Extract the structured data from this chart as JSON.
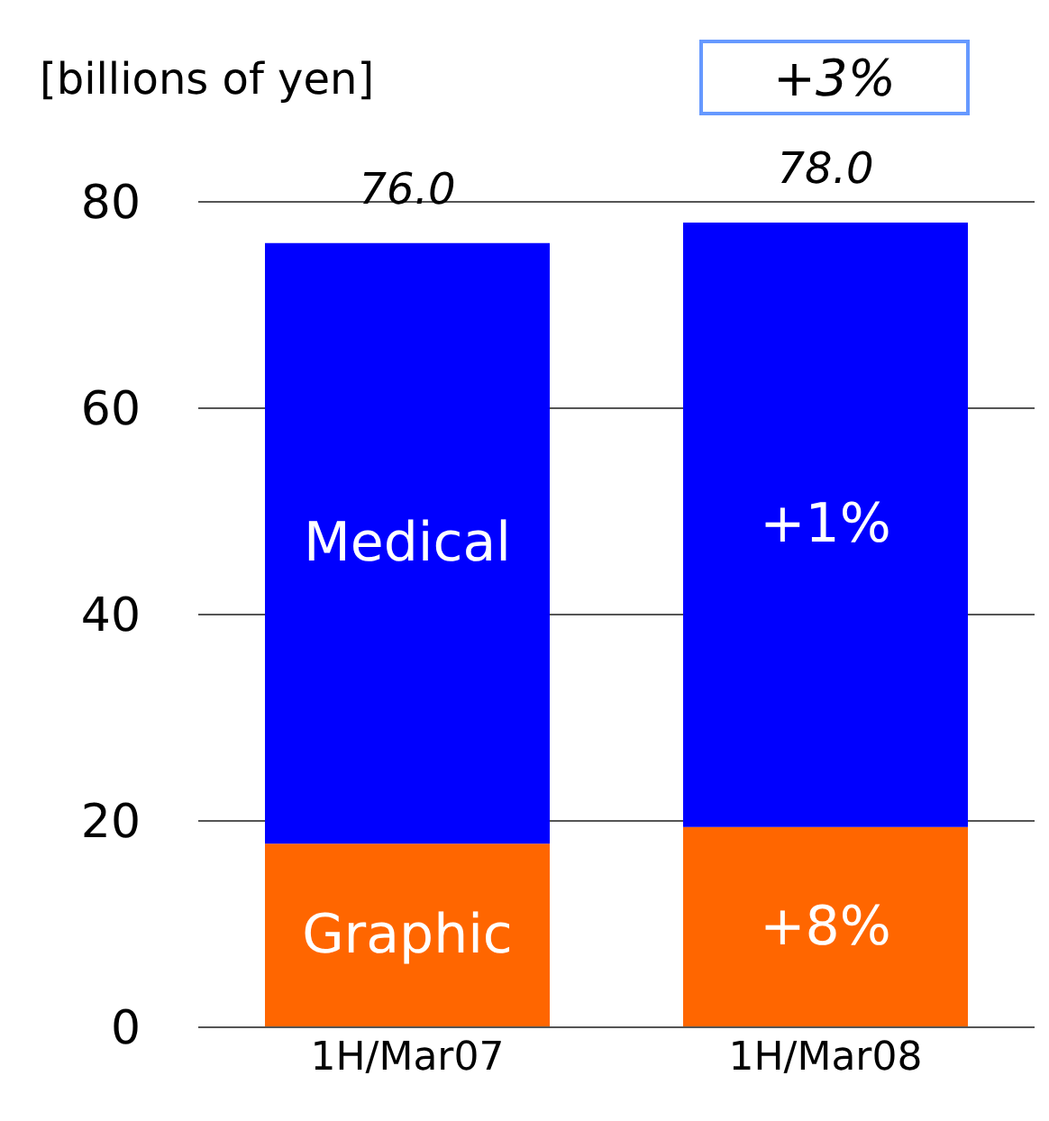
{
  "chart_data": {
    "type": "bar",
    "stacked": true,
    "ylabel": "[billions of yen]",
    "categories": [
      "1H/Mar07",
      "1H/Mar08"
    ],
    "series": [
      {
        "name": "Graphic",
        "color": "#ff6600",
        "values": [
          17.8,
          19.4
        ]
      },
      {
        "name": "Medical",
        "color": "#0000ff",
        "values": [
          58.2,
          58.6
        ]
      }
    ],
    "totals": [
      "76.0",
      "78.0"
    ],
    "ylim": [
      0,
      80
    ],
    "yticks": [
      0,
      20,
      40,
      60,
      80
    ],
    "grid": "y",
    "annotations": [
      "+3%",
      "+1%",
      "+8%"
    ]
  }
}
